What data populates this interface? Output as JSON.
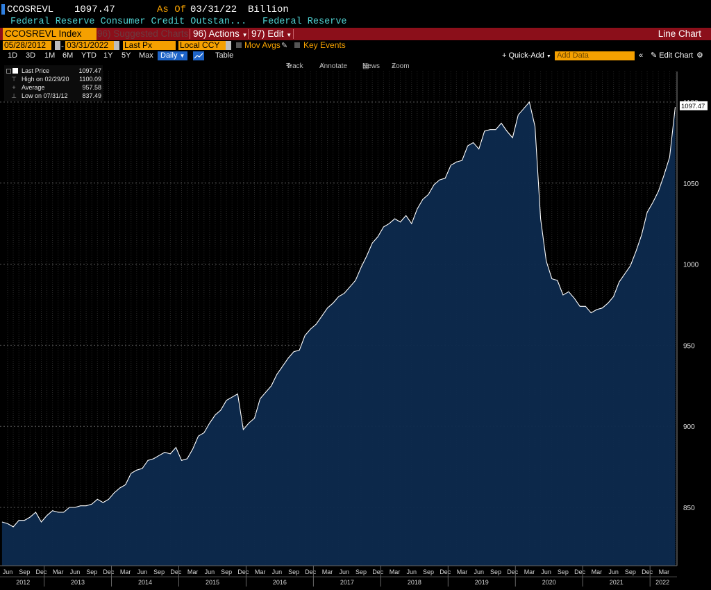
{
  "header": {
    "ticker": "CCOSREVL",
    "price": "1097.47",
    "as_of_label": "As Of",
    "as_of_date": "03/31/22",
    "unit": "Billion",
    "description": "Federal Reserve Consumer Credit Outstan...",
    "source": "Federal Reserve"
  },
  "toolbar": {
    "security": "CCOSREVL Index",
    "suggested_charts": "96) Suggested Charts",
    "actions": "96) Actions",
    "edit": "97) Edit",
    "chart_title": "Line Chart"
  },
  "settings": {
    "start_date": "05/28/2012",
    "end_date": "03/31/2022",
    "field": "Last Px",
    "currency": "Local CCY",
    "mov_avgs": "Mov Avgs",
    "key_events": "Key Events"
  },
  "periods": [
    "1D",
    "3D",
    "1M",
    "6M",
    "YTD",
    "1Y",
    "5Y",
    "Max"
  ],
  "frequency": "Daily",
  "table_label": "Table",
  "quick_add": "Quick-Add",
  "add_data_placeholder": "Add Data",
  "edit_chart": "Edit Chart",
  "chart_tools": {
    "track": "Track",
    "annotate": "Annotate",
    "news": "News",
    "zoom": "Zoom"
  },
  "legend": {
    "last_price_label": "Last Price",
    "last_price": "1097.47",
    "high_label": "High on 02/29/20",
    "high": "1100.09",
    "average_label": "Average",
    "average": "957.58",
    "low_label": "Low on 07/31/12",
    "low": "837.49"
  },
  "colors": {
    "accent": "#f5a000",
    "toolbar_red": "#8b0f1a",
    "area_fill": "#0d2a4e",
    "line": "#ffffff",
    "cyan_text": "#4fd1d1"
  },
  "chart_data": {
    "type": "area",
    "title": "",
    "xlabel": "",
    "ylabel": "",
    "ylim": [
      813,
      1107
    ],
    "yticks": [
      850,
      900,
      950,
      1000,
      1050,
      1100
    ],
    "y_tick_labels": [
      "850",
      "900",
      "950",
      "1000",
      "1050",
      "1100"
    ],
    "last_value_label": "1097.47",
    "grid": true,
    "x_start": "2012-05",
    "x_month_labels": [
      "Jun",
      "Sep",
      "Dec",
      "Mar",
      "Jun",
      "Sep",
      "Dec",
      "Mar",
      "Jun",
      "Sep",
      "Dec",
      "Mar",
      "Jun",
      "Sep",
      "Dec",
      "Mar",
      "Jun",
      "Sep",
      "Dec",
      "Mar",
      "Jun",
      "Sep",
      "Dec",
      "Mar",
      "Jun",
      "Sep",
      "Dec",
      "Mar",
      "Jun",
      "Sep",
      "Dec",
      "Mar",
      "Jun",
      "Sep",
      "Dec",
      "Mar",
      "Jun",
      "Sep",
      "Dec",
      "Mar"
    ],
    "x_year_labels": [
      "2012",
      "2013",
      "2014",
      "2015",
      "2016",
      "2017",
      "2018",
      "2019",
      "2020",
      "2021",
      "2022"
    ],
    "series": [
      {
        "name": "",
        "values": [
          841,
          840,
          838,
          842,
          842,
          844,
          847,
          841,
          845,
          848,
          847,
          847,
          850,
          850,
          851,
          851,
          852,
          855,
          853,
          855,
          859,
          862,
          864,
          871,
          873,
          874,
          879,
          880,
          882,
          884,
          883,
          887,
          879,
          880,
          886,
          894,
          896,
          902,
          907,
          910,
          916,
          918,
          920,
          898,
          902,
          905,
          917,
          921,
          925,
          932,
          937,
          942,
          946,
          947,
          956,
          960,
          963,
          968,
          973,
          976,
          980,
          982,
          986,
          990,
          998,
          1005,
          1013,
          1017,
          1023,
          1025,
          1028,
          1026,
          1030,
          1025,
          1034,
          1040,
          1043,
          1049,
          1052,
          1053,
          1061,
          1063,
          1064,
          1073,
          1075,
          1071,
          1082,
          1083,
          1083,
          1087,
          1082,
          1078,
          1092,
          1096,
          1100,
          1085,
          1028,
          1002,
          991,
          990,
          981,
          983,
          979,
          974,
          974,
          970,
          972,
          973,
          976,
          980,
          989,
          994,
          999,
          1008,
          1018,
          1032,
          1038,
          1045,
          1055,
          1066,
          1097
        ]
      }
    ]
  }
}
